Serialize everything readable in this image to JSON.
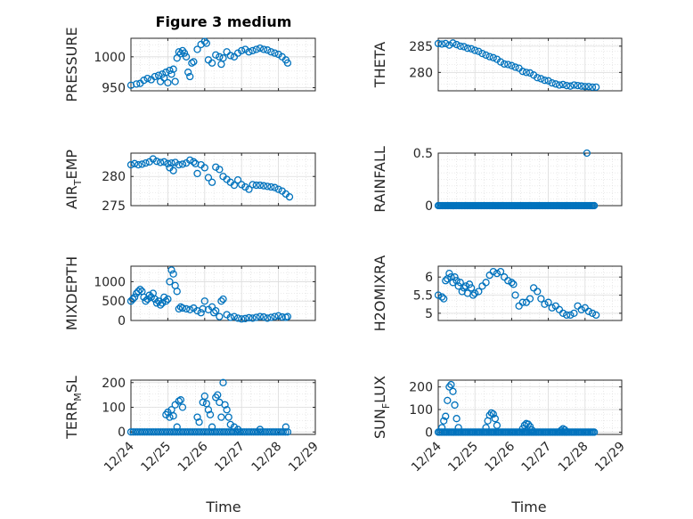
{
  "figure": {
    "title": "Figure 3 medium",
    "xlabel": "Time",
    "marker_color": "#0072BD"
  },
  "chart_data": [
    {
      "id": "pressure",
      "type": "scatter",
      "ylabel": "PRESSURE",
      "ylim": [
        945,
        1030
      ],
      "yticks": [
        950,
        1000
      ],
      "xlim": [
        0,
        5
      ],
      "grid": true,
      "x": [
        0.0,
        0.15,
        0.25,
        0.35,
        0.45,
        0.55,
        0.65,
        0.75,
        0.8,
        0.85,
        0.9,
        0.95,
        1.0,
        1.05,
        1.1,
        1.15,
        1.2,
        1.25,
        1.3,
        1.35,
        1.4,
        1.45,
        1.5,
        1.55,
        1.6,
        1.65,
        1.7,
        1.8,
        1.9,
        2.0,
        2.05,
        2.1,
        2.2,
        2.3,
        2.4,
        2.45,
        2.5,
        2.6,
        2.7,
        2.8,
        2.9,
        3.0,
        3.1,
        3.2,
        3.3,
        3.4,
        3.5,
        3.6,
        3.7,
        3.8,
        3.9,
        4.0,
        4.1,
        4.2,
        4.25
      ],
      "values": [
        954,
        956,
        957,
        962,
        965,
        963,
        968,
        970,
        960,
        972,
        966,
        975,
        958,
        978,
        972,
        980,
        960,
        998,
        1008,
        1005,
        1010,
        1006,
        1000,
        975,
        968,
        990,
        992,
        1012,
        1020,
        1025,
        1022,
        995,
        990,
        1003,
        1000,
        988,
        998,
        1008,
        1002,
        1000,
        1006,
        1010,
        1012,
        1008,
        1010,
        1012,
        1014,
        1012,
        1011,
        1008,
        1006,
        1004,
        1000,
        995,
        990
      ]
    },
    {
      "id": "theta",
      "type": "scatter",
      "ylabel": "THETA",
      "ylim": [
        276.5,
        286.5
      ],
      "yticks": [
        280,
        285
      ],
      "xlim": [
        0,
        5
      ],
      "grid": true,
      "x": [
        0.0,
        0.1,
        0.2,
        0.3,
        0.4,
        0.5,
        0.6,
        0.7,
        0.8,
        0.9,
        1.0,
        1.1,
        1.2,
        1.3,
        1.4,
        1.5,
        1.6,
        1.7,
        1.8,
        1.9,
        2.0,
        2.1,
        2.2,
        2.3,
        2.4,
        2.5,
        2.6,
        2.7,
        2.8,
        2.9,
        3.0,
        3.1,
        3.2,
        3.3,
        3.4,
        3.5,
        3.6,
        3.7,
        3.8,
        3.9,
        4.0,
        4.1,
        4.2,
        4.3
      ],
      "values": [
        285.5,
        285.4,
        285.5,
        285.2,
        285.6,
        285.3,
        285.0,
        284.9,
        284.6,
        284.5,
        284.2,
        284.0,
        283.6,
        283.3,
        283.0,
        282.8,
        282.5,
        282.0,
        281.6,
        281.5,
        281.3,
        281.0,
        280.8,
        280.2,
        280.0,
        279.9,
        279.5,
        279.0,
        278.8,
        278.5,
        278.4,
        278.0,
        277.8,
        277.6,
        277.7,
        277.5,
        277.4,
        277.6,
        277.5,
        277.4,
        277.3,
        277.3,
        277.2,
        277.2
      ]
    },
    {
      "id": "air_temp",
      "type": "scatter",
      "ylabel_main": "AIR",
      "ylabel_sub": "T",
      "ylabel_rest": "EMP",
      "ylim": [
        275,
        284
      ],
      "yticks": [
        275,
        280
      ],
      "xlim": [
        0,
        5
      ],
      "grid": true,
      "x": [
        0.0,
        0.1,
        0.2,
        0.3,
        0.4,
        0.5,
        0.6,
        0.7,
        0.8,
        0.9,
        1.0,
        1.05,
        1.1,
        1.15,
        1.2,
        1.3,
        1.4,
        1.5,
        1.6,
        1.7,
        1.75,
        1.8,
        1.9,
        2.0,
        2.1,
        2.2,
        2.3,
        2.4,
        2.5,
        2.6,
        2.7,
        2.8,
        2.9,
        3.0,
        3.1,
        3.2,
        3.3,
        3.4,
        3.5,
        3.6,
        3.7,
        3.8,
        3.9,
        4.0,
        4.1,
        4.2,
        4.3
      ],
      "values": [
        282.0,
        282.2,
        282.0,
        282.1,
        282.3,
        282.5,
        283.0,
        282.6,
        282.4,
        282.5,
        282.2,
        281.5,
        282.3,
        281.0,
        282.4,
        282.0,
        282.1,
        282.3,
        282.8,
        282.5,
        282.2,
        280.5,
        282.0,
        281.5,
        279.8,
        279.0,
        281.6,
        281.2,
        280.0,
        279.5,
        279.0,
        278.5,
        279.4,
        278.6,
        278.2,
        277.8,
        278.6,
        278.5,
        278.5,
        278.4,
        278.3,
        278.2,
        278.1,
        277.8,
        277.5,
        277.0,
        276.5
      ]
    },
    {
      "id": "rainfall",
      "type": "scatter",
      "ylabel": "RAINFALL",
      "ylim": [
        0,
        0.5
      ],
      "yticks": [
        0,
        0.5
      ],
      "xlim": [
        0,
        5
      ],
      "grid": true,
      "x_start": 0.0,
      "x_end": 4.25,
      "count": 120,
      "baseline_value": 0,
      "extra_points": [
        {
          "x": 4.05,
          "y": 0.5
        }
      ]
    },
    {
      "id": "mixdepth",
      "type": "scatter",
      "ylabel": "MIXDEPTH",
      "ylim": [
        0,
        1400
      ],
      "yticks": [
        0,
        500,
        1000
      ],
      "xlim": [
        0,
        5
      ],
      "grid": true,
      "x": [
        0.0,
        0.05,
        0.1,
        0.15,
        0.2,
        0.25,
        0.3,
        0.35,
        0.4,
        0.45,
        0.5,
        0.55,
        0.6,
        0.65,
        0.7,
        0.75,
        0.8,
        0.85,
        0.9,
        0.95,
        1.0,
        1.05,
        1.1,
        1.15,
        1.2,
        1.25,
        1.3,
        1.35,
        1.4,
        1.5,
        1.6,
        1.7,
        1.8,
        1.9,
        1.95,
        2.0,
        2.1,
        2.2,
        2.25,
        2.3,
        2.4,
        2.45,
        2.5,
        2.6,
        2.7,
        2.8,
        2.9,
        3.0,
        3.1,
        3.2,
        3.3,
        3.4,
        3.5,
        3.6,
        3.7,
        3.8,
        3.9,
        4.0,
        4.1,
        4.2,
        4.25
      ],
      "values": [
        500,
        550,
        600,
        700,
        750,
        800,
        750,
        600,
        500,
        550,
        650,
        600,
        700,
        550,
        450,
        500,
        400,
        450,
        600,
        500,
        550,
        1000,
        1300,
        1200,
        900,
        750,
        300,
        350,
        320,
        300,
        280,
        320,
        250,
        200,
        300,
        500,
        280,
        350,
        200,
        250,
        100,
        500,
        550,
        150,
        80,
        100,
        60,
        40,
        50,
        70,
        60,
        80,
        100,
        90,
        60,
        80,
        100,
        120,
        90,
        80,
        100
      ]
    },
    {
      "id": "h2omixra",
      "type": "scatter",
      "ylabel": "H2OMIXRA",
      "ylim": [
        4.8,
        6.3
      ],
      "yticks": [
        5,
        5.5,
        6
      ],
      "xlim": [
        0,
        5
      ],
      "grid": true,
      "x": [
        0.0,
        0.1,
        0.15,
        0.2,
        0.25,
        0.3,
        0.35,
        0.4,
        0.45,
        0.5,
        0.55,
        0.6,
        0.65,
        0.7,
        0.75,
        0.8,
        0.85,
        0.9,
        0.95,
        1.0,
        1.1,
        1.2,
        1.3,
        1.4,
        1.5,
        1.6,
        1.7,
        1.8,
        1.9,
        2.0,
        2.05,
        2.1,
        2.2,
        2.3,
        2.4,
        2.5,
        2.6,
        2.7,
        2.8,
        2.9,
        3.0,
        3.1,
        3.2,
        3.3,
        3.4,
        3.5,
        3.6,
        3.7,
        3.8,
        3.9,
        4.0,
        4.1,
        4.2,
        4.3
      ],
      "values": [
        5.5,
        5.45,
        5.4,
        5.9,
        5.95,
        6.1,
        6.0,
        5.85,
        6.0,
        5.9,
        5.75,
        5.85,
        5.6,
        5.7,
        5.75,
        5.55,
        5.8,
        5.7,
        5.5,
        5.55,
        5.6,
        5.75,
        5.85,
        6.05,
        6.15,
        6.1,
        6.15,
        6.0,
        5.9,
        5.85,
        5.8,
        5.5,
        5.2,
        5.3,
        5.3,
        5.4,
        5.7,
        5.6,
        5.4,
        5.25,
        5.3,
        5.15,
        5.2,
        5.1,
        5.0,
        4.95,
        4.95,
        5.0,
        5.2,
        5.1,
        5.15,
        5.05,
        5.0,
        4.95
      ]
    },
    {
      "id": "terr_msl",
      "type": "scatter",
      "ylabel_main": "TERR",
      "ylabel_sub": "M",
      "ylabel_rest": "SL",
      "ylim": [
        -10,
        210
      ],
      "yticks": [
        0,
        100,
        200
      ],
      "xlim": [
        0,
        5
      ],
      "grid": true,
      "x_start": 0.0,
      "x_end": 4.25,
      "count": 70,
      "baseline_value": 0,
      "extra_points": [
        {
          "x": 0.95,
          "y": 70
        },
        {
          "x": 1.0,
          "y": 80
        },
        {
          "x": 1.05,
          "y": 60
        },
        {
          "x": 1.1,
          "y": 90
        },
        {
          "x": 1.15,
          "y": 65
        },
        {
          "x": 1.2,
          "y": 110
        },
        {
          "x": 1.25,
          "y": 20
        },
        {
          "x": 1.3,
          "y": 125
        },
        {
          "x": 1.35,
          "y": 130
        },
        {
          "x": 1.4,
          "y": 100
        },
        {
          "x": 1.8,
          "y": 60
        },
        {
          "x": 1.85,
          "y": 40
        },
        {
          "x": 1.95,
          "y": 120
        },
        {
          "x": 2.0,
          "y": 145
        },
        {
          "x": 2.05,
          "y": 115
        },
        {
          "x": 2.1,
          "y": 90
        },
        {
          "x": 2.15,
          "y": 70
        },
        {
          "x": 2.2,
          "y": 20
        },
        {
          "x": 2.3,
          "y": 140
        },
        {
          "x": 2.35,
          "y": 150
        },
        {
          "x": 2.4,
          "y": 120
        },
        {
          "x": 2.45,
          "y": 60
        },
        {
          "x": 2.5,
          "y": 200
        },
        {
          "x": 2.55,
          "y": 110
        },
        {
          "x": 2.6,
          "y": 90
        },
        {
          "x": 2.65,
          "y": 60
        },
        {
          "x": 2.7,
          "y": 30
        },
        {
          "x": 2.8,
          "y": 20
        },
        {
          "x": 2.9,
          "y": 10
        },
        {
          "x": 3.5,
          "y": 10
        },
        {
          "x": 4.2,
          "y": 20
        }
      ]
    },
    {
      "id": "sun_flux",
      "type": "scatter",
      "ylabel_main": "SUN",
      "ylabel_sub": "F",
      "ylabel_rest": "LUX",
      "ylim": [
        -10,
        230
      ],
      "yticks": [
        0,
        100,
        200
      ],
      "xlim": [
        0,
        5
      ],
      "grid": true,
      "x_start": 0.0,
      "x_end": 4.25,
      "count": 110,
      "baseline_value": 0,
      "extra_points": [
        {
          "x": 0.1,
          "y": 20
        },
        {
          "x": 0.15,
          "y": 50
        },
        {
          "x": 0.2,
          "y": 70
        },
        {
          "x": 0.25,
          "y": 140
        },
        {
          "x": 0.3,
          "y": 200
        },
        {
          "x": 0.35,
          "y": 210
        },
        {
          "x": 0.4,
          "y": 180
        },
        {
          "x": 0.45,
          "y": 120
        },
        {
          "x": 0.5,
          "y": 60
        },
        {
          "x": 0.55,
          "y": 20
        },
        {
          "x": 1.3,
          "y": 20
        },
        {
          "x": 1.35,
          "y": 50
        },
        {
          "x": 1.4,
          "y": 75
        },
        {
          "x": 1.45,
          "y": 85
        },
        {
          "x": 1.5,
          "y": 80
        },
        {
          "x": 1.55,
          "y": 60
        },
        {
          "x": 1.6,
          "y": 30
        },
        {
          "x": 2.3,
          "y": 15
        },
        {
          "x": 2.35,
          "y": 30
        },
        {
          "x": 2.4,
          "y": 38
        },
        {
          "x": 2.45,
          "y": 35
        },
        {
          "x": 2.5,
          "y": 25
        },
        {
          "x": 2.55,
          "y": 10
        },
        {
          "x": 3.35,
          "y": 8
        },
        {
          "x": 3.4,
          "y": 15
        },
        {
          "x": 3.45,
          "y": 10
        }
      ]
    }
  ],
  "xticklabels": [
    "12/24",
    "12/25",
    "12/26",
    "12/27",
    "12/28",
    "12/29"
  ]
}
